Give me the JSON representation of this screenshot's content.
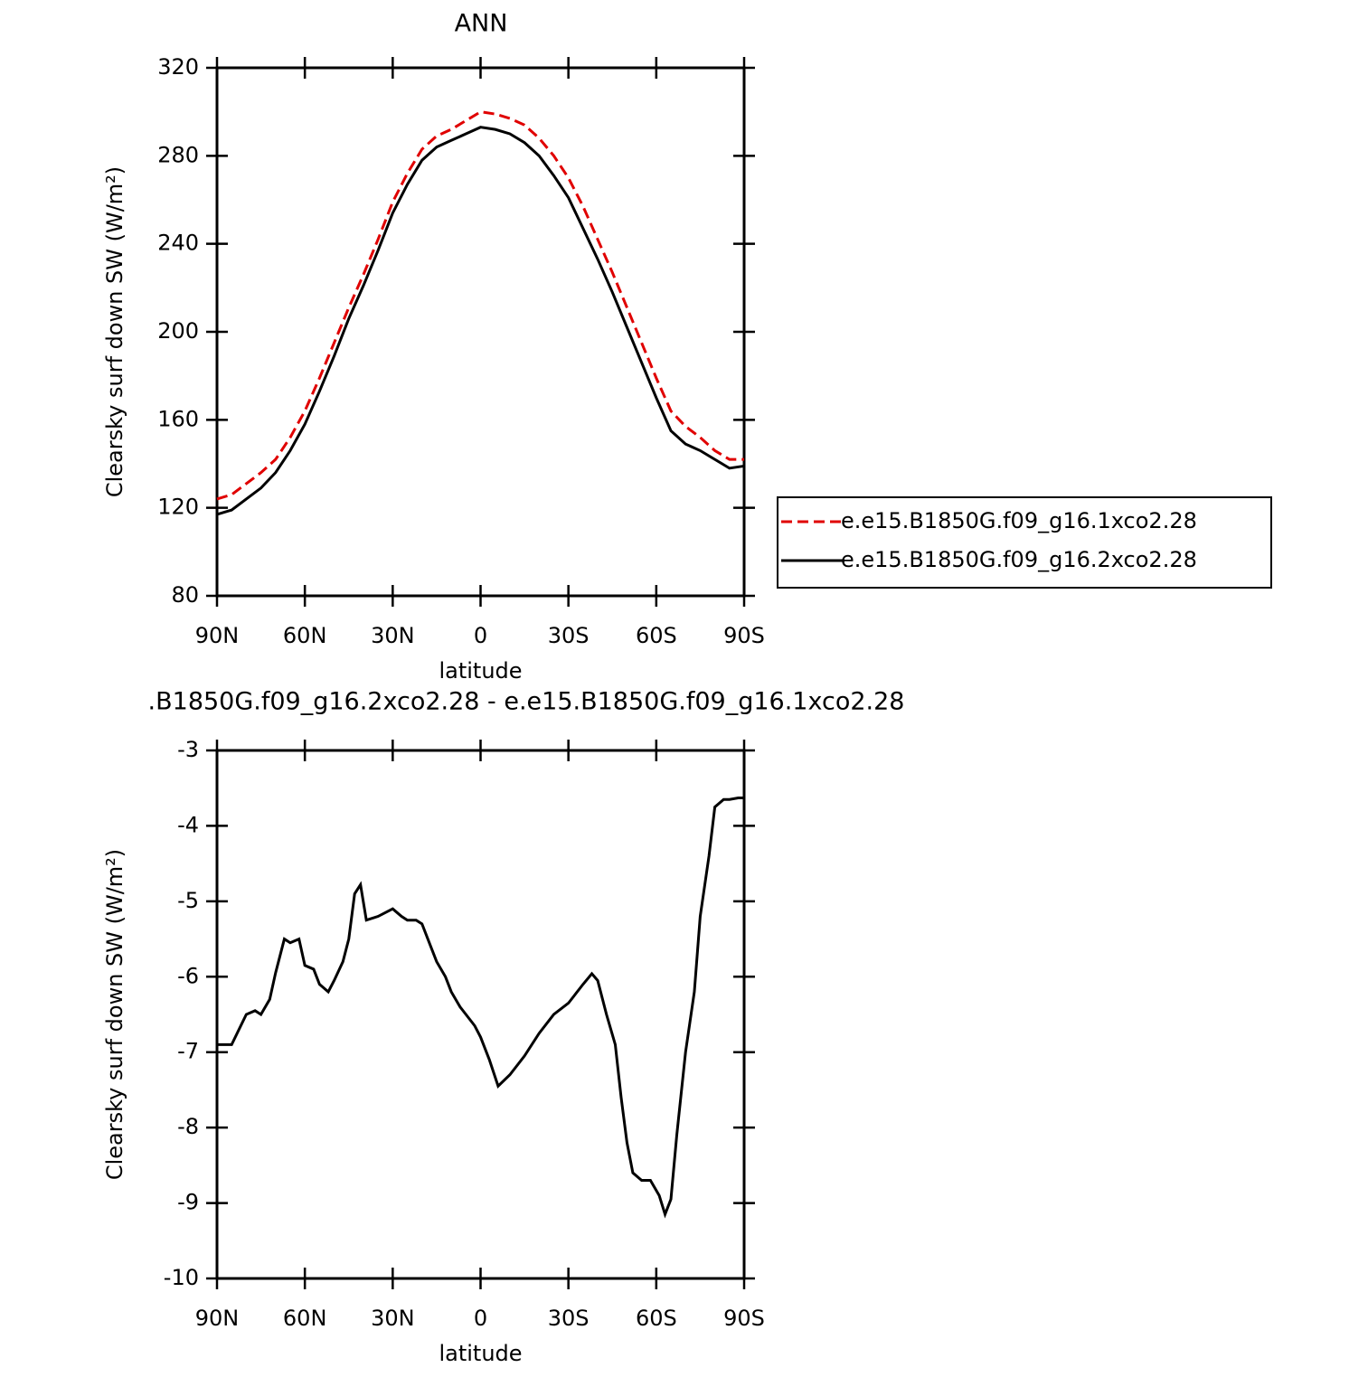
{
  "chart_data": [
    {
      "type": "line",
      "title": "ANN",
      "xlabel": "latitude",
      "ylabel": "Clearsky surf down SW (W/m²)",
      "x": [
        90,
        85,
        80,
        75,
        70,
        65,
        60,
        55,
        50,
        45,
        40,
        35,
        30,
        25,
        20,
        15,
        10,
        5,
        0,
        -5,
        -10,
        -15,
        -20,
        -25,
        -30,
        -35,
        -40,
        -45,
        -50,
        -55,
        -60,
        -65,
        -70,
        -75,
        -80,
        -85,
        -90
      ],
      "series": [
        {
          "name": "e.e15.B1850G.f09_g16.1xco2.28",
          "color": "#e00000",
          "linestyle": "dashed",
          "values": [
            124,
            126,
            131,
            136,
            142,
            152,
            164,
            179,
            195,
            211,
            226,
            242,
            259,
            272,
            283,
            289,
            292,
            296,
            300,
            299,
            297,
            294,
            288,
            280,
            270,
            257,
            242,
            227,
            211,
            195,
            179,
            164,
            157,
            152,
            146,
            142,
            142
          ]
        },
        {
          "name": "e.e15.B1850G.f09_g16.2xco2.28",
          "color": "#000000",
          "linestyle": "solid",
          "values": [
            117,
            119,
            124,
            129,
            136,
            146,
            158,
            173,
            189,
            206,
            221,
            237,
            254,
            267,
            278,
            284,
            287,
            290,
            293,
            292,
            290,
            286,
            280,
            271,
            261,
            247,
            233,
            218,
            202,
            186,
            170,
            155,
            149,
            146,
            142,
            138,
            139
          ]
        }
      ],
      "xlim": [
        90,
        -90
      ],
      "xticks": [
        {
          "value": 90,
          "label": "90N"
        },
        {
          "value": 60,
          "label": "60N"
        },
        {
          "value": 30,
          "label": "30N"
        },
        0,
        {
          "value": -30,
          "label": "30S"
        },
        {
          "value": -60,
          "label": "60S"
        },
        {
          "value": -90,
          "label": "90S"
        }
      ],
      "ylim": [
        80,
        320
      ],
      "yticks": [
        80,
        120,
        160,
        200,
        240,
        280,
        320
      ],
      "legend": "right"
    },
    {
      "type": "line",
      "title": ".B1850G.f09_g16.2xco2.28 - e.e15.B1850G.f09_g16.1xco2.28",
      "xlabel": "latitude",
      "ylabel": "Clearsky surf down SW (W/m²)",
      "x": [
        90,
        85,
        80,
        77,
        75,
        72,
        70,
        67,
        65,
        62,
        60,
        57,
        55,
        52,
        50,
        47,
        45,
        43,
        41,
        39,
        35,
        30,
        27,
        25,
        22,
        20,
        17,
        15,
        12,
        10,
        7,
        5,
        2,
        0,
        -3,
        -6,
        -10,
        -15,
        -20,
        -25,
        -30,
        -35,
        -38,
        -40,
        -43,
        -46,
        -48,
        -50,
        -52,
        -55,
        -58,
        -61,
        -63,
        -65,
        -67,
        -70,
        -73,
        -75,
        -78,
        -80,
        -83,
        -85,
        -88,
        -90
      ],
      "series": [
        {
          "color": "#000000",
          "linestyle": "solid",
          "values": [
            -6.9,
            -6.9,
            -6.5,
            -6.45,
            -6.5,
            -6.3,
            -5.95,
            -5.5,
            -5.55,
            -5.5,
            -5.85,
            -5.9,
            -6.1,
            -6.2,
            -6.05,
            -5.8,
            -5.5,
            -4.9,
            -4.78,
            -5.25,
            -5.2,
            -5.1,
            -5.2,
            -5.25,
            -5.25,
            -5.3,
            -5.6,
            -5.8,
            -6.0,
            -6.2,
            -6.4,
            -6.5,
            -6.65,
            -6.8,
            -7.1,
            -7.45,
            -7.3,
            -7.05,
            -6.75,
            -6.5,
            -6.35,
            -6.1,
            -5.96,
            -6.05,
            -6.5,
            -6.9,
            -7.6,
            -8.2,
            -8.6,
            -8.7,
            -8.7,
            -8.9,
            -9.15,
            -8.95,
            -8.1,
            -7.0,
            -6.2,
            -5.2,
            -4.4,
            -3.75,
            -3.65,
            -3.65,
            -3.63,
            -3.63
          ]
        }
      ],
      "xlim": [
        90,
        -90
      ],
      "xticks": [
        {
          "value": 90,
          "label": "90N"
        },
        {
          "value": 60,
          "label": "60N"
        },
        {
          "value": 30,
          "label": "30N"
        },
        0,
        {
          "value": -30,
          "label": "30S"
        },
        {
          "value": -60,
          "label": "60S"
        },
        {
          "value": -90,
          "label": "90S"
        }
      ],
      "ylim": [
        -10,
        -3
      ],
      "yticks": [
        -10,
        -9,
        -8,
        -7,
        -6,
        -5,
        -4,
        -3
      ]
    }
  ]
}
